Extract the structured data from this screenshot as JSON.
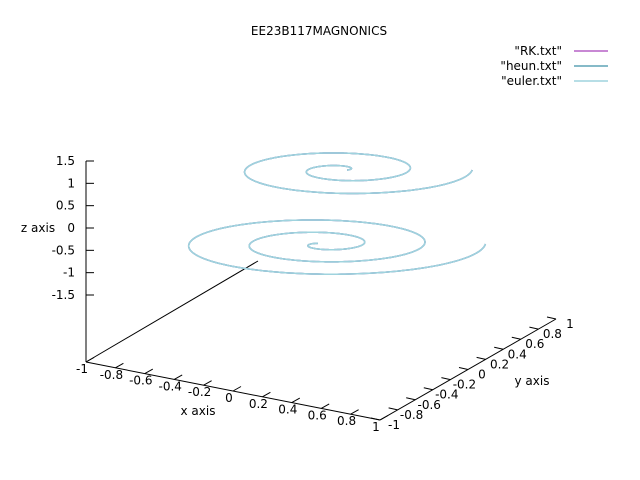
{
  "chart_data": {
    "type": "line",
    "title": "EE23B117MAGNONICS",
    "xlabel": "x axis",
    "ylabel": "y axis",
    "zlabel": "z axis",
    "xlim": [
      -1,
      1
    ],
    "ylim": [
      -1,
      1
    ],
    "zlim": [
      -1.5,
      1.5
    ],
    "x_ticks": [
      "-1",
      "-0.8",
      "-0.6",
      "-0.4",
      "-0.2",
      "0",
      "0.2",
      "0.4",
      "0.6",
      "0.8",
      "1"
    ],
    "y_ticks": [
      "-1",
      "-0.8",
      "-0.6",
      "-0.4",
      "-0.2",
      "0",
      "0.2",
      "0.4",
      "0.6",
      "0.8",
      "1"
    ],
    "z_ticks": [
      "-1.5",
      "-1",
      "-0.5",
      "0",
      "0.5",
      "1",
      "1.5"
    ],
    "legend_position": "top-right",
    "grid": false,
    "series": [
      {
        "name": "\"RK.txt\"",
        "color": "#b561c6",
        "segments": [
          {
            "z": -0.05,
            "turns": 2.6,
            "inner_radius": 0.03,
            "outer_radius": 0.95
          },
          {
            "z": 1.25,
            "turns": 2.0,
            "inner_radius": 0.03,
            "outer_radius": 0.95
          }
        ]
      },
      {
        "name": "\"heun.txt\"",
        "color": "#5fa4b6",
        "segments": [
          {
            "z": -0.05,
            "turns": 2.6,
            "inner_radius": 0.03,
            "outer_radius": 0.95
          },
          {
            "z": 1.25,
            "turns": 2.0,
            "inner_radius": 0.03,
            "outer_radius": 0.95
          }
        ]
      },
      {
        "name": "\"euler.txt\"",
        "color": "#9fd3de",
        "segments": [
          {
            "z": -0.05,
            "turns": 2.6,
            "inner_radius": 0.03,
            "outer_radius": 0.95
          },
          {
            "z": 1.25,
            "turns": 2.0,
            "inner_radius": 0.03,
            "outer_radius": 0.95
          }
        ]
      }
    ]
  }
}
